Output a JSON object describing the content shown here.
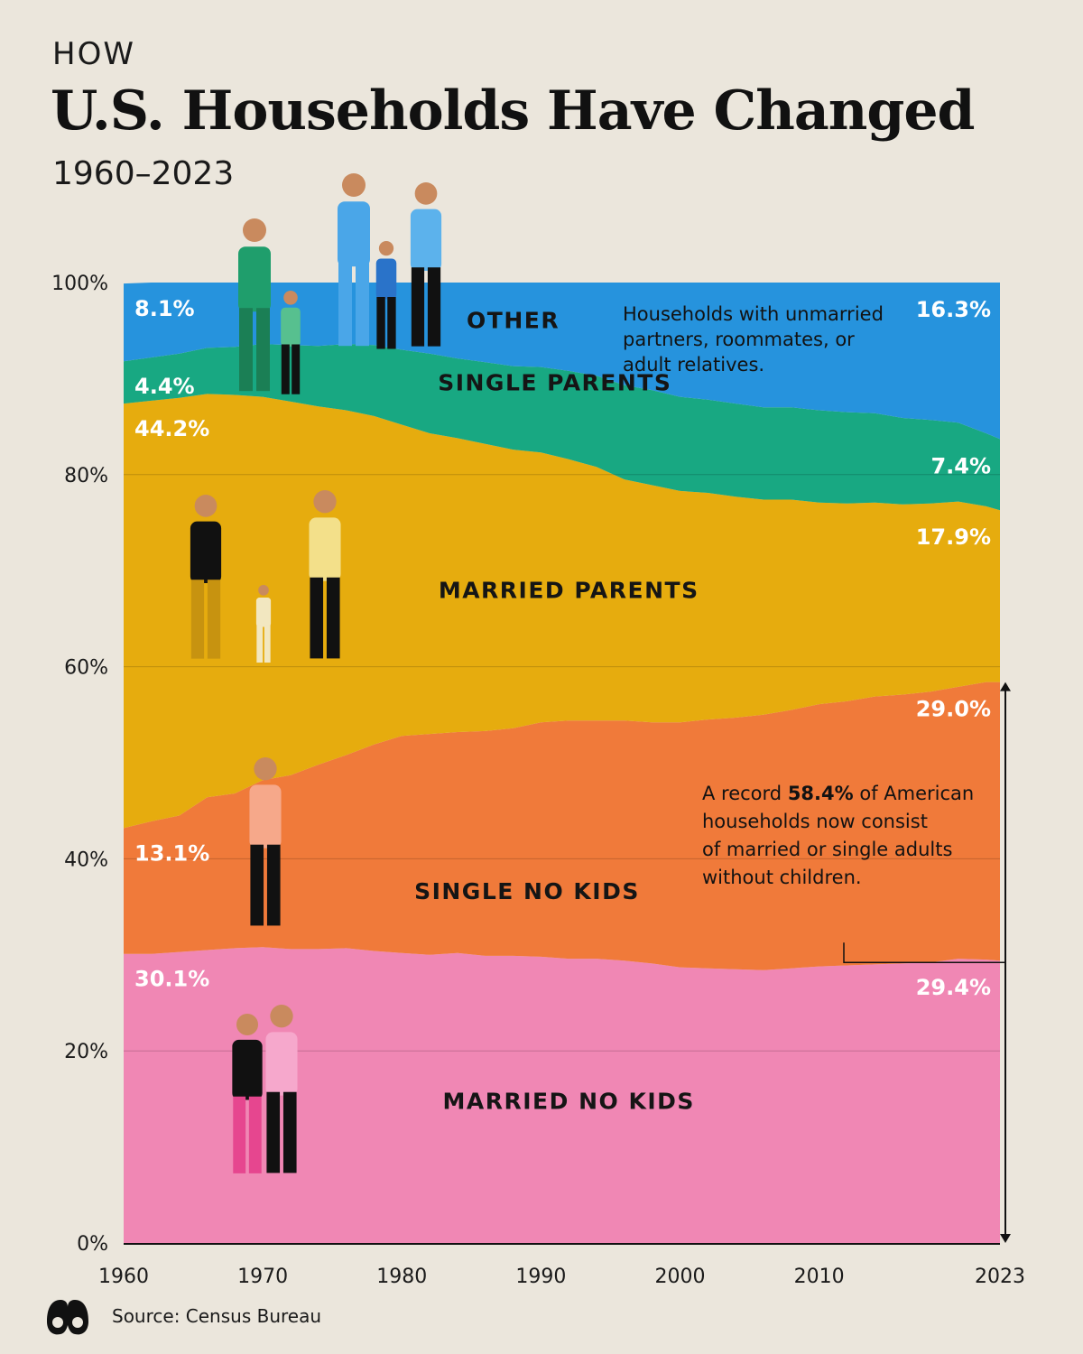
{
  "header": {
    "pretitle": "HOW",
    "title": "U.S. Households Have Changed",
    "subtitle": "1960–2023"
  },
  "source": "Source: Census Bureau",
  "chart_data": {
    "type": "area",
    "stacked": true,
    "x": [
      1960,
      1962,
      1964,
      1966,
      1968,
      1970,
      1972,
      1974,
      1976,
      1978,
      1980,
      1982,
      1984,
      1986,
      1988,
      1990,
      1992,
      1994,
      1996,
      1998,
      2000,
      2002,
      2004,
      2006,
      2008,
      2010,
      2012,
      2014,
      2016,
      2018,
      2020,
      2022,
      2023
    ],
    "series": [
      {
        "name": "MARRIED NO KIDS",
        "color": "#f087b4",
        "values": [
          30.1,
          30.1,
          30.3,
          30.5,
          30.7,
          30.8,
          30.6,
          30.6,
          30.7,
          30.4,
          30.2,
          30.0,
          30.2,
          29.9,
          29.9,
          29.8,
          29.6,
          29.6,
          29.4,
          29.1,
          28.7,
          28.6,
          28.5,
          28.4,
          28.6,
          28.8,
          28.9,
          29.0,
          29.1,
          29.2,
          29.6,
          29.5,
          29.4
        ]
      },
      {
        "name": "SINGLE NO KIDS",
        "color": "#f07a3a",
        "values": [
          13.1,
          13.8,
          14.2,
          15.9,
          16.1,
          17.4,
          18.1,
          19.2,
          20.1,
          21.5,
          22.6,
          23.0,
          23.0,
          23.4,
          23.7,
          24.4,
          24.8,
          24.8,
          25.0,
          25.1,
          25.5,
          25.9,
          26.2,
          26.6,
          26.9,
          27.3,
          27.5,
          27.9,
          28.0,
          28.2,
          28.3,
          28.9,
          29.0
        ]
      },
      {
        "name": "MARRIED PARENTS",
        "color": "#e6ac0e",
        "values": [
          44.2,
          43.8,
          43.5,
          42.0,
          41.5,
          39.9,
          38.9,
          37.3,
          35.9,
          34.2,
          32.4,
          31.3,
          30.6,
          29.9,
          29.0,
          28.1,
          27.2,
          26.4,
          25.1,
          24.7,
          24.1,
          23.6,
          23.0,
          22.4,
          21.9,
          21.0,
          20.6,
          20.2,
          19.8,
          19.6,
          19.3,
          18.3,
          17.9
        ]
      },
      {
        "name": "SINGLE PARENTS",
        "color": "#18a882",
        "values": [
          4.4,
          4.5,
          4.6,
          4.8,
          5.0,
          5.5,
          5.9,
          6.3,
          6.9,
          7.4,
          7.8,
          8.3,
          8.3,
          8.5,
          8.7,
          8.9,
          9.2,
          9.5,
          9.8,
          9.9,
          9.8,
          9.7,
          9.7,
          9.6,
          9.6,
          9.6,
          9.5,
          9.3,
          9.0,
          8.7,
          8.2,
          7.6,
          7.4
        ]
      },
      {
        "name": "OTHER",
        "color": "#2693dd",
        "values": [
          8.1,
          7.8,
          7.4,
          6.8,
          6.7,
          6.4,
          6.5,
          6.6,
          6.4,
          6.5,
          7.0,
          7.4,
          7.9,
          8.3,
          8.7,
          8.8,
          9.2,
          9.7,
          10.7,
          11.2,
          11.9,
          12.2,
          12.6,
          13.0,
          13.0,
          13.3,
          13.5,
          13.6,
          14.1,
          14.3,
          14.6,
          15.7,
          16.3
        ]
      }
    ],
    "start_labels": [
      "30.1%",
      "13.1%",
      "44.2%",
      "4.4%",
      "8.1%"
    ],
    "end_labels": [
      "29.4%",
      "29.0%",
      "17.9%",
      "7.4%",
      "16.3%"
    ],
    "yticks": [
      "0%",
      "20%",
      "40%",
      "60%",
      "80%",
      "100%"
    ],
    "xticks": [
      "1960",
      "1970",
      "1980",
      "1990",
      "2000",
      "2010",
      "2023"
    ],
    "ylim": [
      0,
      100
    ],
    "annotations": {
      "other_note": [
        "Households with unmarried",
        "partners, roommates, or",
        "adult relatives."
      ],
      "record_note": {
        "line1_prefix": "A record ",
        "line1_bold": "58.4%",
        "line1_suffix": " of American",
        "lines": [
          "households now consist",
          "of married or single adults",
          "without children."
        ]
      }
    }
  }
}
